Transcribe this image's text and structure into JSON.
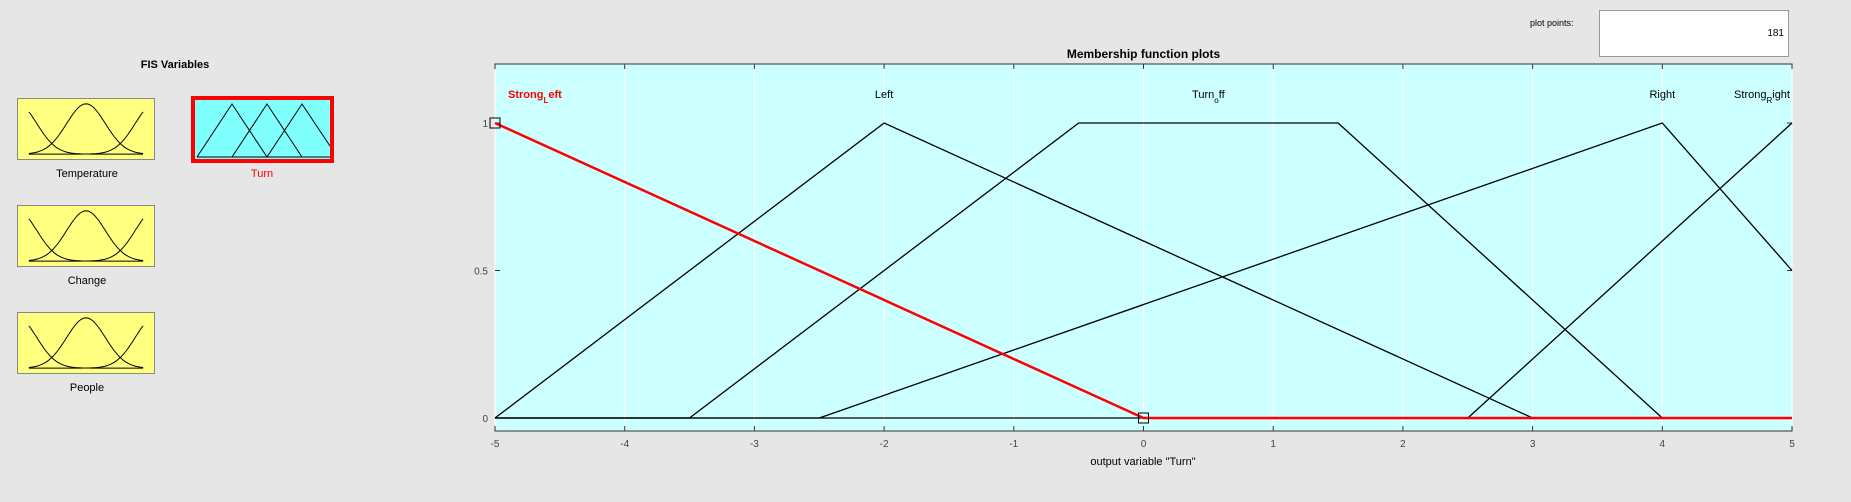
{
  "fis_panel": {
    "title": "FIS Variables",
    "variables": [
      {
        "label": "Temperature",
        "kind": "input",
        "selected": false
      },
      {
        "label": "Turn",
        "kind": "output",
        "selected": true
      },
      {
        "label": "Change",
        "kind": "input",
        "selected": false
      },
      {
        "label": "People",
        "kind": "input",
        "selected": false
      }
    ]
  },
  "plot_points": {
    "label": "plot points:",
    "value": "181"
  },
  "plot": {
    "title": "Membership function plots",
    "xlabel": "output variable \"Turn\"",
    "x_ticks": [
      "-5",
      "-4",
      "-3",
      "-2",
      "-1",
      "0",
      "1",
      "2",
      "3",
      "4",
      "5"
    ],
    "y_ticks": [
      "0",
      "0.5",
      "1"
    ],
    "selected_color": "#ff0000",
    "background_color": "#ccffff",
    "mf_labels": [
      {
        "main": "Strong",
        "sub": "L",
        "rest": "eft",
        "selected": true
      },
      {
        "main": "Left",
        "sub": "",
        "rest": "",
        "selected": false
      },
      {
        "main": "Turn",
        "sub": "o",
        "rest": "ff",
        "selected": false
      },
      {
        "main": "Right",
        "sub": "",
        "rest": "",
        "selected": false
      },
      {
        "main": "Strong",
        "sub": "R",
        "rest": "ight",
        "selected": false
      }
    ]
  },
  "chart_data": {
    "type": "line",
    "xlabel": "output variable \"Turn\"",
    "xlim": [
      -5,
      5
    ],
    "ylim": [
      0,
      1
    ],
    "series": [
      {
        "name": "Strong_Left",
        "x": [
          -5,
          0,
          5
        ],
        "y": [
          1,
          0,
          0
        ],
        "selected": true
      },
      {
        "name": "Left",
        "x": [
          -5,
          -2,
          3,
          5
        ],
        "y": [
          0,
          1,
          0,
          0
        ]
      },
      {
        "name": "Turn_off",
        "x": [
          -5,
          -3.5,
          -0.5,
          1.5,
          4,
          5
        ],
        "y": [
          0,
          0,
          1,
          1,
          0,
          0
        ]
      },
      {
        "name": "Right",
        "x": [
          -5,
          -2.5,
          4,
          5
        ],
        "y": [
          0,
          0,
          1,
          0.5
        ]
      },
      {
        "name": "Strong_Right",
        "x": [
          -5,
          2.5,
          5
        ],
        "y": [
          0,
          0,
          1
        ]
      }
    ]
  }
}
